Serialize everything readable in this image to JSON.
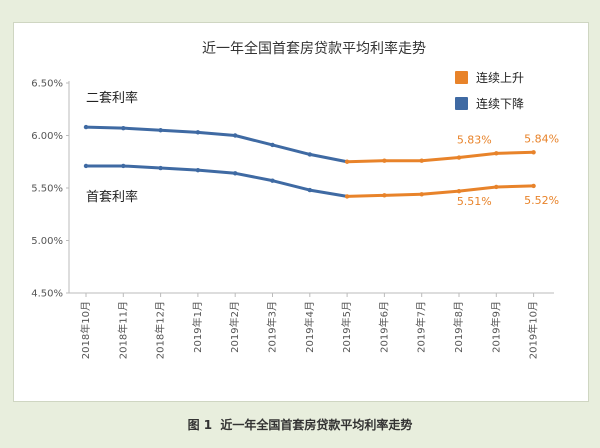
{
  "caption": {
    "number": "图 1",
    "text": "近一年全国首套房贷款平均利率走势"
  },
  "chart_data": {
    "type": "line",
    "title": "近一年全国首套房贷款平均利率走势",
    "categories": [
      "2018年10月",
      "2018年11月",
      "2018年12月",
      "2019年1月",
      "2019年2月",
      "2019年3月",
      "2019年4月",
      "2019年5月",
      "2019年6月",
      "2019年7月",
      "2019年8月",
      "2019年9月",
      "2019年10月"
    ],
    "y_ticks": [
      "4.50%",
      "5.00%",
      "5.50%",
      "6.00%",
      "6.50%"
    ],
    "ylim": [
      4.5,
      6.5
    ],
    "series": [
      {
        "name": "二套利率",
        "values": [
          6.08,
          6.07,
          6.05,
          6.03,
          6.0,
          5.91,
          5.82,
          5.75,
          5.76,
          5.76,
          5.79,
          5.83,
          5.84
        ]
      },
      {
        "name": "首套利率",
        "values": [
          5.71,
          5.71,
          5.69,
          5.67,
          5.64,
          5.57,
          5.48,
          5.42,
          5.43,
          5.44,
          5.47,
          5.51,
          5.52
        ]
      }
    ],
    "legend": [
      {
        "label": "连续上升",
        "color": "#e8832a"
      },
      {
        "label": "连续下降",
        "color": "#3f6aa3"
      }
    ],
    "data_labels": {
      "second": [
        "5.83%",
        "5.84%"
      ],
      "first": [
        "5.51%",
        "5.52%"
      ]
    },
    "legend_position": "top-right",
    "grid": false
  }
}
